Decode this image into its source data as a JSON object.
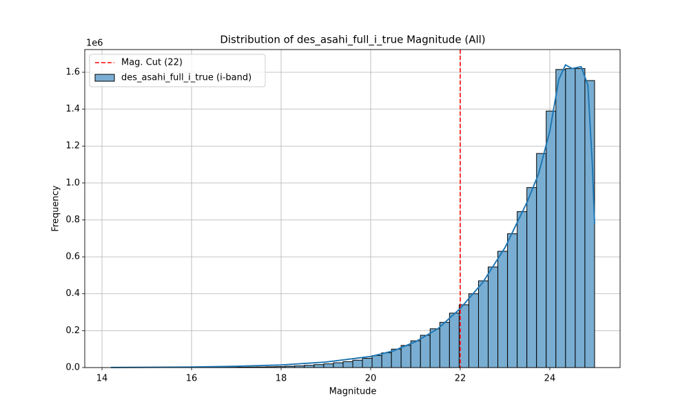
{
  "chart_data": {
    "type": "histogram",
    "title": "Distribution of des_asahi_full_i_true Magnitude (All)",
    "xlabel": "Magnitude",
    "ylabel": "Frequency",
    "y_offset_label": "1e6",
    "bins": [
      14.2,
      14.416,
      14.632,
      14.848,
      15.064,
      15.28,
      15.496,
      15.712,
      15.928,
      16.144,
      16.36,
      16.576,
      16.792,
      17.008,
      17.224,
      17.44,
      17.656,
      17.872,
      18.088,
      18.304,
      18.52,
      18.736,
      18.952,
      19.168,
      19.384,
      19.6,
      19.816,
      20.032,
      20.248,
      20.464,
      20.68,
      20.896,
      21.112,
      21.328,
      21.544,
      21.76,
      21.976,
      22.192,
      22.408,
      22.624,
      22.84,
      23.056,
      23.272,
      23.488,
      23.704,
      23.92,
      24.136,
      24.352,
      24.568,
      24.784,
      25.0
    ],
    "series": [
      {
        "name": "des_asahi_full_i_true (i-band)",
        "color": "#79aed2",
        "edgecolor": "#000000",
        "values": [
          100,
          100,
          200,
          200,
          300,
          300,
          400,
          500,
          600,
          800,
          1000,
          1200,
          1500,
          2000,
          2500,
          3000,
          4000,
          5000,
          7000,
          9000,
          12000,
          16000,
          20000,
          26000,
          32000,
          40000,
          50000,
          65000,
          80000,
          100000,
          120000,
          145000,
          175000,
          210000,
          245000,
          295000,
          340000,
          400000,
          470000,
          545000,
          630000,
          725000,
          845000,
          975000,
          1160000,
          1390000,
          1615000,
          1620000,
          1620000,
          1555000
        ]
      }
    ],
    "kde": {
      "color": "#1f77b4",
      "x": [
        14.2,
        16,
        17,
        18,
        19,
        20,
        20.5,
        21,
        21.5,
        22,
        22.5,
        23,
        23.5,
        23.75,
        24,
        24.2,
        24.35,
        24.5,
        24.7,
        24.85,
        24.95,
        25
      ],
      "values": [
        500,
        3000,
        7000,
        14000,
        30000,
        60000,
        90000,
        140000,
        210000,
        320000,
        460000,
        650000,
        900000,
        1050000,
        1280000,
        1560000,
        1640000,
        1620000,
        1630000,
        1530000,
        1100000,
        780000
      ]
    },
    "vlines": [
      {
        "name": "Mag. Cut (22)",
        "x": 22,
        "color": "#ff0000"
      }
    ],
    "legend": "upper left",
    "grid": true,
    "xlim": [
      13.615,
      25.57
    ],
    "ylim": [
      0,
      1723000
    ],
    "xticks": [
      14,
      16,
      18,
      20,
      22,
      24
    ],
    "yticks": [
      {
        "value": 0,
        "label": "0.0"
      },
      {
        "value": 200000,
        "label": "0.2"
      },
      {
        "value": 400000,
        "label": "0.4"
      },
      {
        "value": 600000,
        "label": "0.6"
      },
      {
        "value": 800000,
        "label": "0.8"
      },
      {
        "value": 1000000,
        "label": "1.0"
      },
      {
        "value": 1200000,
        "label": "1.2"
      },
      {
        "value": 1400000,
        "label": "1.4"
      },
      {
        "value": 1600000,
        "label": "1.6"
      }
    ]
  }
}
